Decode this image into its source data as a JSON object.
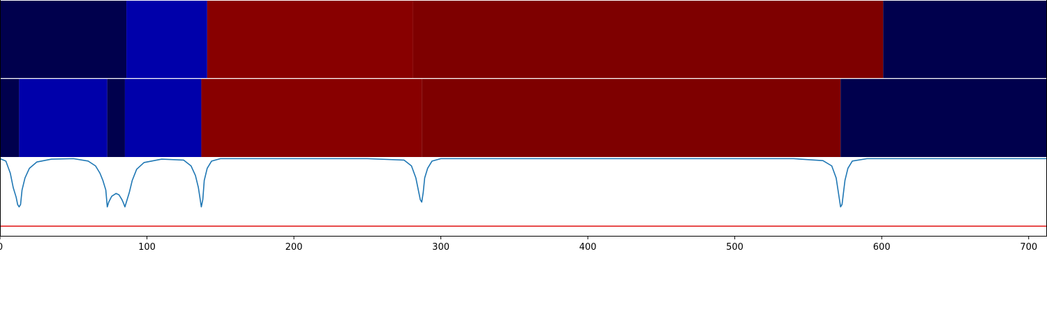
{
  "chart_data": {
    "type": "heatmap",
    "title": "",
    "xlabel": "",
    "ylabel": "",
    "xlim": [
      0,
      712
    ],
    "x_ticks": [
      "0",
      "100",
      "200",
      "300",
      "400",
      "500",
      "600",
      "700"
    ],
    "x_tick_values": [
      0,
      100,
      200,
      300,
      400,
      500,
      600,
      700
    ],
    "tracks": [
      {
        "segments": [
          {
            "start": 0,
            "end": 86,
            "color": "#00004d"
          },
          {
            "start": 86,
            "end": 141,
            "color": "#0000aa"
          },
          {
            "start": 141,
            "end": 281,
            "color": "#880000"
          },
          {
            "start": 281,
            "end": 601,
            "color": "#7e0000"
          },
          {
            "start": 601,
            "end": 712,
            "color": "#00004d"
          }
        ]
      },
      {
        "segments": [
          {
            "start": 0,
            "end": 13,
            "color": "#00004d"
          },
          {
            "start": 13,
            "end": 73,
            "color": "#0000aa"
          },
          {
            "start": 73,
            "end": 85,
            "color": "#00004d"
          },
          {
            "start": 85,
            "end": 137,
            "color": "#0000aa"
          },
          {
            "start": 137,
            "end": 287,
            "color": "#880000"
          },
          {
            "start": 287,
            "end": 572,
            "color": "#7e0000"
          },
          {
            "start": 572,
            "end": 712,
            "color": "#00004d"
          }
        ]
      }
    ],
    "line_series": {
      "color": "#1f77b4",
      "x": [
        0,
        4,
        7,
        9,
        11,
        12,
        13,
        14,
        15,
        17,
        20,
        25,
        35,
        50,
        60,
        65,
        68,
        70,
        72,
        73,
        74,
        76,
        79,
        81,
        83,
        84,
        85,
        86,
        88,
        90,
        93,
        98,
        110,
        125,
        130,
        133,
        135,
        136,
        137,
        138,
        139,
        141,
        144,
        150,
        170,
        250,
        275,
        280,
        283,
        285,
        286,
        287,
        288,
        289,
        291,
        294,
        300,
        330,
        450,
        540,
        560,
        566,
        569,
        571,
        572,
        573,
        574,
        575,
        577,
        580,
        590,
        610,
        712
      ],
      "y": [
        1.0,
        0.95,
        0.7,
        0.4,
        0.2,
        0.05,
        0.0,
        0.05,
        0.35,
        0.6,
        0.8,
        0.93,
        0.99,
        1.0,
        0.95,
        0.85,
        0.7,
        0.55,
        0.35,
        0.0,
        0.1,
        0.22,
        0.28,
        0.25,
        0.15,
        0.08,
        0.0,
        0.1,
        0.3,
        0.55,
        0.78,
        0.92,
        0.99,
        0.97,
        0.85,
        0.65,
        0.4,
        0.2,
        0.0,
        0.15,
        0.55,
        0.8,
        0.95,
        1.0,
        1.0,
        1.0,
        0.97,
        0.85,
        0.6,
        0.3,
        0.15,
        0.1,
        0.3,
        0.6,
        0.8,
        0.95,
        1.0,
        1.0,
        1.0,
        1.0,
        0.96,
        0.85,
        0.6,
        0.2,
        0.0,
        0.05,
        0.3,
        0.55,
        0.8,
        0.95,
        1.0,
        1.0,
        1.0
      ],
      "ylim": [
        -0.6,
        1.02
      ]
    },
    "threshold_line": {
      "color": "#e01010",
      "y": -0.4
    }
  }
}
